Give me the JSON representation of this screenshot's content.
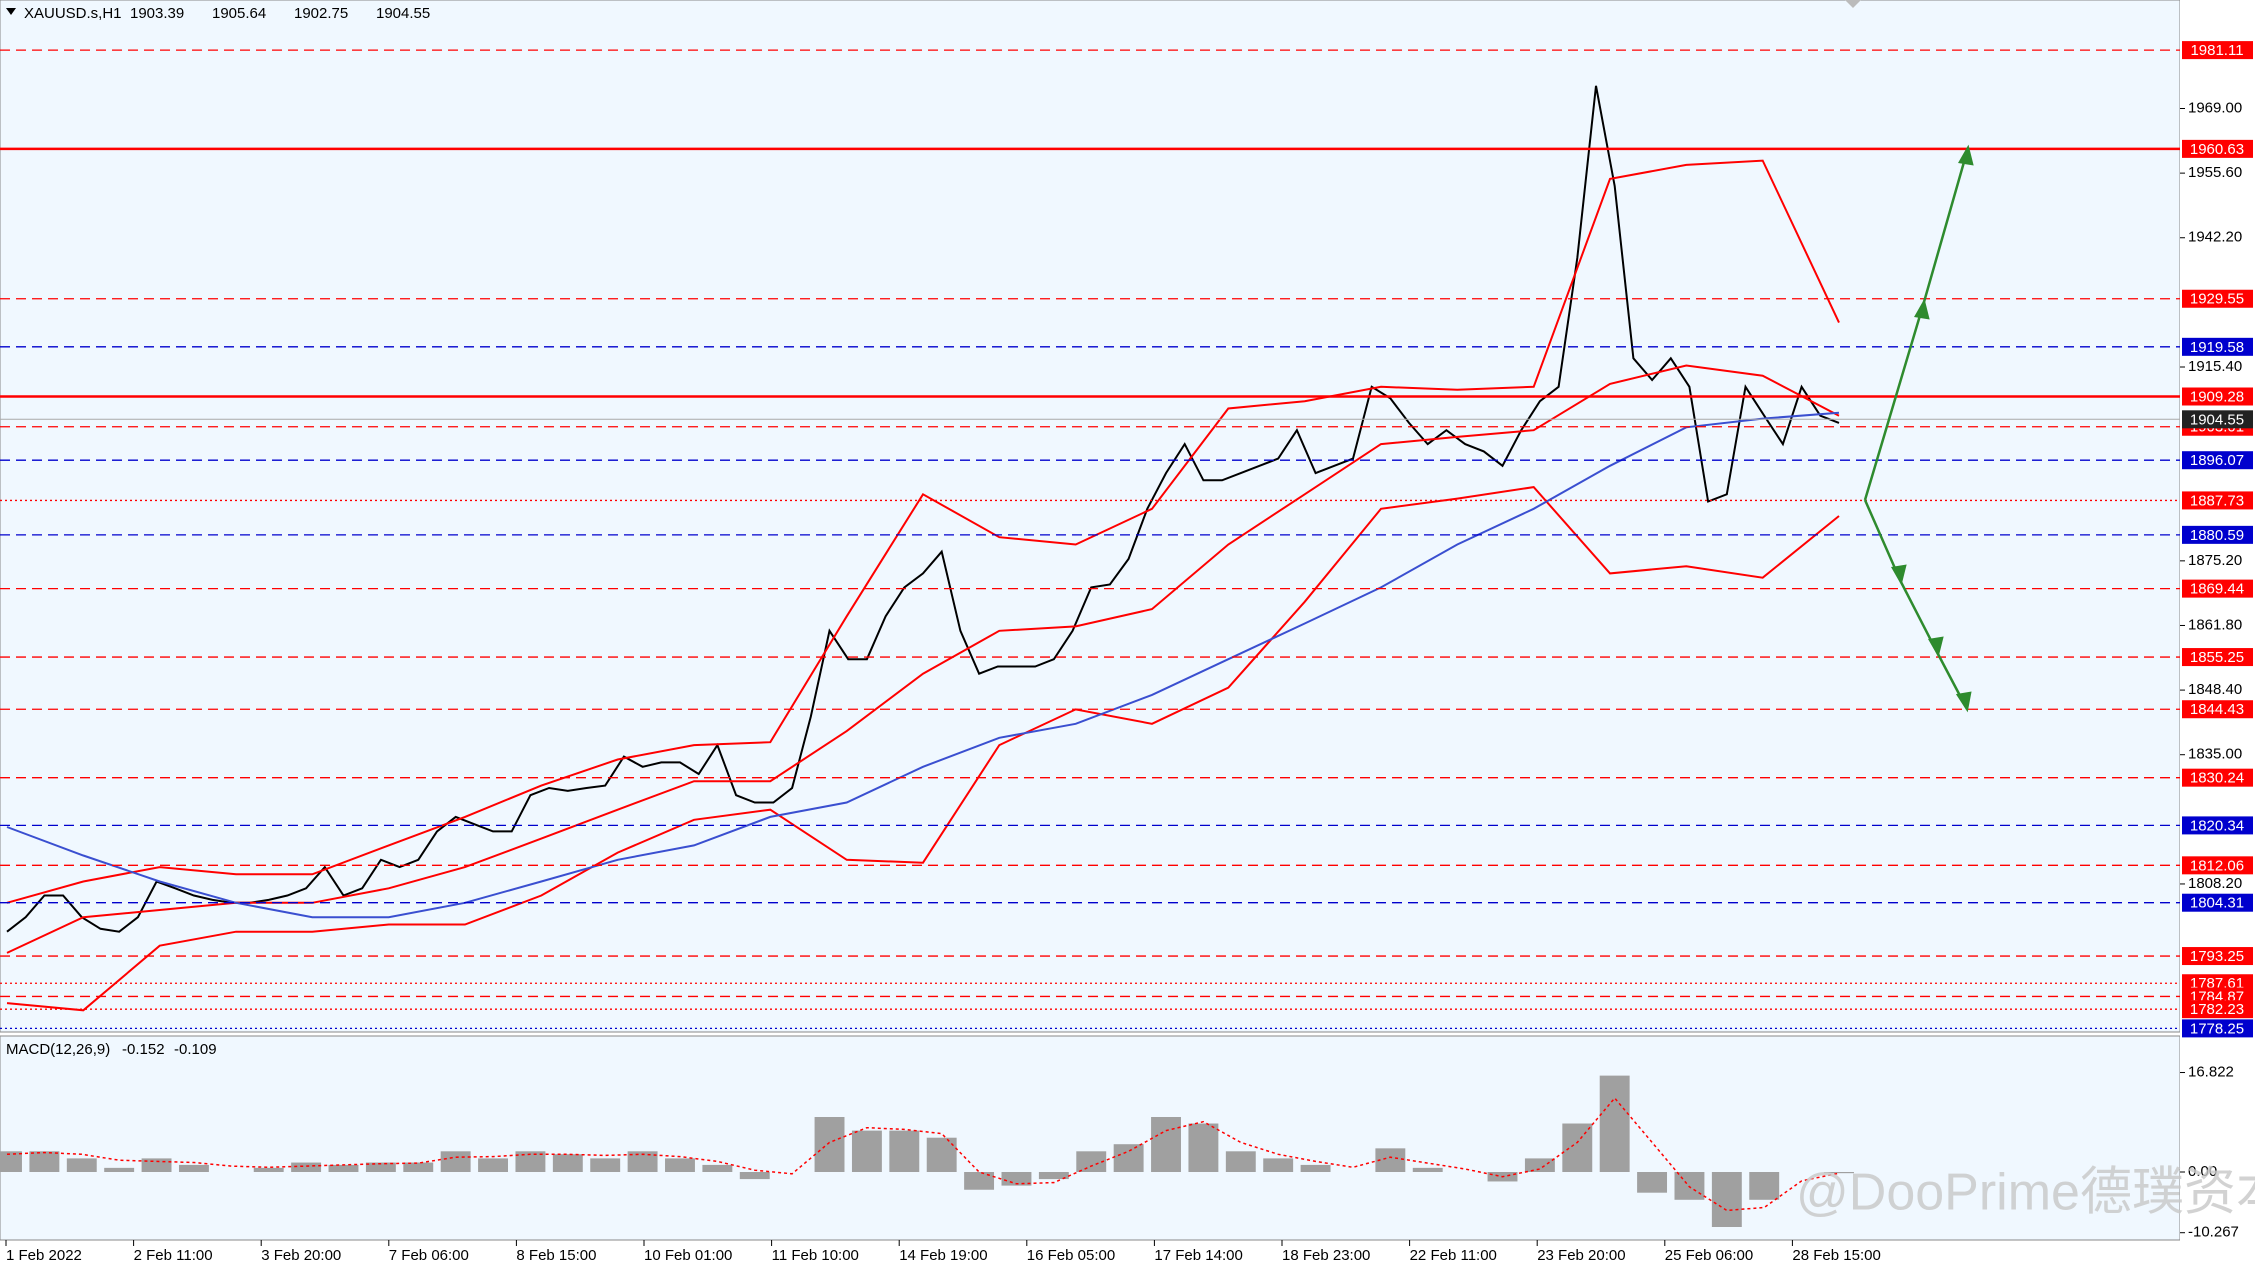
{
  "chart_data": [
    {
      "type": "line",
      "title": "XAUUSD.s,H1",
      "ohlc": [
        1903.39,
        1905.64,
        1902.75,
        1904.55
      ],
      "ylim": [
        1777.5,
        1991.5
      ],
      "yticks": [
        {
          "value": 1969,
          "label": "1969.00"
        },
        {
          "value": 1955.6,
          "label": "1955.60"
        },
        {
          "value": 1942.2,
          "label": "1942.20"
        },
        {
          "value": 1915.4,
          "label": "1915.40"
        },
        {
          "value": 1875.2,
          "label": "1875.20"
        },
        {
          "value": 1861.8,
          "label": "1861.80"
        },
        {
          "value": 1848.4,
          "label": "1848.40"
        },
        {
          "value": 1835,
          "label": "1835.00"
        },
        {
          "value": 1808.2,
          "label": "1808.20"
        }
      ],
      "series": [
        {
          "color": "#000000",
          "values": [
            1798.3,
            1801.3,
            1805.8,
            1805.8,
            1801.3,
            1798.9,
            1798.3,
            1801.3,
            1808.7,
            1807.3,
            1805.8,
            1804.9,
            1804.3,
            1804.3,
            1804.9,
            1805.8,
            1807.3,
            1811.7,
            1805.8,
            1807.3,
            1813.2,
            1811.7,
            1813.2,
            1819.1,
            1822.1,
            1820.6,
            1819.1,
            1819.1,
            1826.6,
            1828.1,
            1827.5,
            1828.1,
            1828.6,
            1834.6,
            1832.5,
            1833.4,
            1833.4,
            1831.0,
            1837.0,
            1826.6,
            1825.1,
            1825.1,
            1828.1,
            1842.9,
            1860.7,
            1854.8,
            1854.8,
            1863.7,
            1869.7,
            1872.6,
            1877.1,
            1860.7,
            1851.8,
            1853.3,
            1853.3,
            1853.3,
            1854.8,
            1860.7,
            1869.7,
            1870.3,
            1875.6,
            1886.0,
            1893.4,
            1899.4,
            1891.9,
            1891.9,
            1893.4,
            1894.9,
            1896.4,
            1902.3,
            1893.4,
            1894.9,
            1896.4,
            1911.3,
            1908.9,
            1903.8,
            1899.4,
            1902.3,
            1899.4,
            1897.9,
            1894.9,
            1902.3,
            1908.3,
            1911.3,
            1938.0,
            1973.7,
            1952.9,
            1917.2,
            1912.7,
            1917.2,
            1911.3,
            1887.5,
            1889.0,
            1911.3,
            1905.3,
            1899.4,
            1911.3,
            1905.3,
            1903.8
          ]
        },
        {
          "color": "#ff0000",
          "values": [
            1804.3,
            1808.7,
            1811.7,
            1810.2,
            1810.2,
            1816.2,
            1822.1,
            1828.6,
            1834.0,
            1837.0,
            1837.6,
            1863.7,
            1889.0,
            1880.1,
            1878.6,
            1886.0,
            1906.8,
            1908.3,
            1911.3,
            1910.7,
            1911.3,
            1954.4,
            1957.3,
            1958.2,
            1924.6
          ]
        },
        {
          "color": "#ff0000",
          "values": [
            1793.9,
            1801.3,
            1802.8,
            1804.3,
            1804.3,
            1807.3,
            1811.7,
            1817.6,
            1823.6,
            1829.5,
            1829.5,
            1839.9,
            1851.8,
            1860.7,
            1861.6,
            1865.2,
            1878.6,
            1889.0,
            1899.4,
            1900.9,
            1902.3,
            1911.9,
            1915.7,
            1913.6,
            1905.3
          ]
        },
        {
          "color": "#ff0000",
          "values": [
            1783.5,
            1782.0,
            1795.4,
            1798.3,
            1798.3,
            1799.8,
            1799.8,
            1805.8,
            1814.7,
            1821.5,
            1823.6,
            1813.2,
            1812.6,
            1837.0,
            1844.4,
            1841.4,
            1848.9,
            1866.7,
            1886.0,
            1888.1,
            1890.5,
            1872.6,
            1874.1,
            1871.7,
            1884.5
          ]
        },
        {
          "color": "#3a4fd0",
          "values": [
            1820.0,
            1814.1,
            1808.7,
            1804.3,
            1801.3,
            1801.3,
            1804.3,
            1808.7,
            1813.2,
            1816.2,
            1822.1,
            1825.1,
            1832.5,
            1838.5,
            1841.4,
            1847.4,
            1854.8,
            1862.2,
            1869.7,
            1878.6,
            1886.0,
            1894.9,
            1902.9,
            1904.7,
            1905.9
          ]
        }
      ],
      "levels": [
        {
          "value": 1981.11,
          "color": "#ff0000",
          "style": "dashed"
        },
        {
          "value": 1960.63,
          "color": "#ff0000",
          "style": "solid"
        },
        {
          "value": 1929.55,
          "color": "#ff0000",
          "style": "dashed"
        },
        {
          "value": 1919.58,
          "color": "#0000cd",
          "style": "dashed"
        },
        {
          "value": 1909.28,
          "color": "#ff0000",
          "style": "solid"
        },
        {
          "value": 1903.01,
          "color": "#ff0000",
          "style": "dashed"
        },
        {
          "value": 1896.07,
          "color": "#0000cd",
          "style": "dashed"
        },
        {
          "value": 1887.73,
          "color": "#ff0000",
          "style": "dotted"
        },
        {
          "value": 1880.59,
          "color": "#0000cd",
          "style": "dashed"
        },
        {
          "value": 1869.44,
          "color": "#ff0000",
          "style": "dashed"
        },
        {
          "value": 1855.25,
          "color": "#ff0000",
          "style": "dashed"
        },
        {
          "value": 1844.43,
          "color": "#ff0000",
          "style": "dashed"
        },
        {
          "value": 1830.24,
          "color": "#ff0000",
          "style": "dashed"
        },
        {
          "value": 1820.34,
          "color": "#0000cd",
          "style": "dashed"
        },
        {
          "value": 1812.06,
          "color": "#ff0000",
          "style": "dashed"
        },
        {
          "value": 1804.31,
          "color": "#0000cd",
          "style": "dashed"
        },
        {
          "value": 1793.25,
          "color": "#ff0000",
          "style": "dashed"
        },
        {
          "value": 1787.61,
          "color": "#ff0000",
          "style": "dotted"
        },
        {
          "value": 1784.87,
          "color": "#ff0000",
          "style": "dashed"
        },
        {
          "value": 1782.23,
          "color": "#ff0000",
          "style": "dotted"
        },
        {
          "value": 1778.25,
          "color": "#0000cd",
          "style": "dotted"
        }
      ],
      "current_price": {
        "value": 1904.55,
        "color": "#a9a9a9"
      }
    },
    {
      "type": "bar",
      "title": "MACD(12,26,9)",
      "indicator_values": [
        -0.152,
        -0.109
      ],
      "ylim": [
        -11.5,
        23
      ],
      "yticks": [
        16.822,
        {
          "value": 0,
          "label": "0.00"
        },
        -10.267
      ],
      "series": [
        {
          "color": "#a0a0a0",
          "values": [
            3.5,
            3.5,
            2.3,
            0.7,
            2.3,
            1.2,
            0,
            0.7,
            1.6,
            1.2,
            1.6,
            1.6,
            3.5,
            2.3,
            3.5,
            3.0,
            2.3,
            3.5,
            2.3,
            1.2,
            -1.2,
            0,
            9.3,
            7.0,
            7.0,
            5.8,
            -3.0,
            -2.3,
            -1.2,
            3.5,
            4.7,
            9.3,
            8.2,
            3.5,
            2.3,
            1.2,
            0,
            4.0,
            0.7,
            0,
            -1.6,
            2.3,
            8.2,
            16.3,
            -3.5,
            -4.7,
            -9.3,
            -4.7,
            0,
            -0.2
          ]
        }
      ],
      "signal": {
        "color": "#ff0000",
        "values": [
          3.0,
          3.3,
          3.0,
          2.0,
          1.8,
          1.6,
          1.0,
          0.8,
          1.0,
          1.2,
          1.4,
          1.5,
          2.5,
          2.6,
          3.0,
          3.0,
          2.8,
          3.0,
          2.6,
          1.8,
          0.3,
          -0.3,
          5.0,
          7.5,
          7.2,
          6.5,
          0,
          -2.0,
          -1.8,
          1.0,
          3.5,
          7.0,
          8.5,
          5.0,
          3.0,
          1.8,
          0.8,
          2.5,
          1.5,
          0.5,
          -0.8,
          0.5,
          5.0,
          12.5,
          5.0,
          -2.5,
          -6.5,
          -6.0,
          -1.5,
          -0.2
        ]
      },
      "xticks": [
        "1 Feb 2022",
        "2 Feb 11:00",
        "3 Feb 20:00",
        "7 Feb 06:00",
        "8 Feb 15:00",
        "10 Feb 01:00",
        "11 Feb 10:00",
        "14 Feb 19:00",
        "16 Feb 05:00",
        "17 Feb 14:00",
        "18 Feb 23:00",
        "22 Feb 11:00",
        "23 Feb 20:00",
        "25 Feb 06:00",
        "28 Feb 15:00"
      ]
    }
  ],
  "watermark": "@DooPrime德璞资本"
}
